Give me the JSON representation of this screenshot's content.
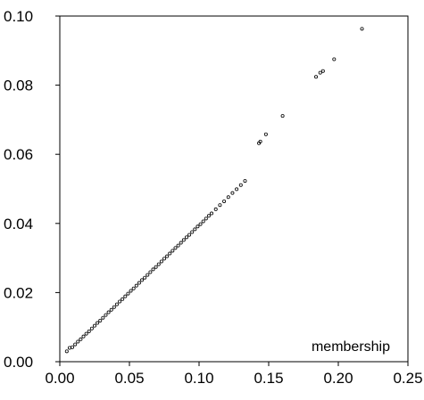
{
  "chart_data": {
    "type": "scatter",
    "title": "",
    "xlabel": "",
    "ylabel": "",
    "annotation": "membership",
    "xlim": [
      0.0,
      0.25
    ],
    "ylim": [
      0.0,
      0.1
    ],
    "x_ticks": [
      "0.00",
      "0.05",
      "0.10",
      "0.15",
      "0.20",
      "0.25"
    ],
    "y_ticks": [
      "0.00",
      "0.02",
      "0.04",
      "0.06",
      "0.08",
      "0.10"
    ],
    "grid": false,
    "legend": "none",
    "marker_color": "#000000",
    "series": [
      {
        "x": [
          0.005,
          0.007,
          0.009,
          0.011,
          0.013,
          0.015,
          0.017,
          0.019,
          0.021,
          0.023,
          0.025,
          0.027,
          0.029,
          0.031,
          0.033,
          0.035,
          0.037,
          0.039,
          0.041,
          0.043,
          0.045,
          0.047,
          0.049,
          0.051,
          0.053,
          0.055,
          0.057,
          0.059,
          0.061,
          0.063,
          0.065,
          0.067,
          0.069,
          0.071,
          0.073,
          0.075,
          0.077,
          0.079,
          0.081,
          0.083,
          0.085,
          0.087,
          0.089,
          0.091,
          0.093,
          0.095,
          0.097,
          0.099,
          0.101,
          0.103,
          0.105,
          0.107,
          0.109,
          0.112,
          0.115,
          0.118,
          0.121,
          0.124,
          0.127,
          0.13,
          0.133,
          0.143,
          0.144,
          0.148,
          0.16,
          0.184,
          0.187,
          0.189,
          0.197,
          0.217
        ],
        "y": [
          0.003,
          0.004,
          0.0042,
          0.005,
          0.0058,
          0.0065,
          0.0073,
          0.0081,
          0.0088,
          0.0096,
          0.0104,
          0.0112,
          0.0119,
          0.0127,
          0.0135,
          0.0143,
          0.015,
          0.0158,
          0.0166,
          0.0174,
          0.0181,
          0.0189,
          0.0197,
          0.0205,
          0.0212,
          0.022,
          0.0228,
          0.0236,
          0.0243,
          0.0251,
          0.0259,
          0.0267,
          0.0274,
          0.0282,
          0.029,
          0.0298,
          0.0305,
          0.0313,
          0.0321,
          0.0329,
          0.0336,
          0.0344,
          0.0352,
          0.036,
          0.0367,
          0.0375,
          0.0383,
          0.0391,
          0.0398,
          0.0406,
          0.0414,
          0.0422,
          0.0429,
          0.0441,
          0.0453,
          0.0464,
          0.0476,
          0.0488,
          0.0499,
          0.0511,
          0.0523,
          0.0632,
          0.0637,
          0.0658,
          0.0711,
          0.0824,
          0.0836,
          0.0841,
          0.0875,
          0.0963
        ]
      }
    ]
  }
}
